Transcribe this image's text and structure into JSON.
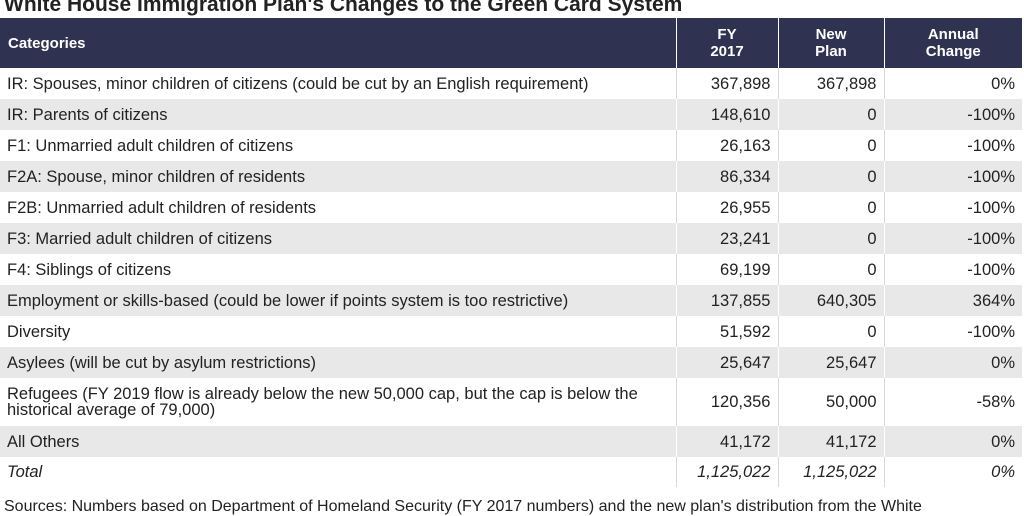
{
  "title": "White House Immigration Plan's Changes to the Green Card System",
  "table": {
    "header": [
      "Categories",
      "FY\n2017",
      "New\nPlan",
      "Annual\nChange"
    ],
    "rows": [
      [
        "IR: Spouses, minor children of citizens (could be cut by an English requirement)",
        "367,898",
        "367,898",
        "0%"
      ],
      [
        "IR: Parents of citizens",
        "148,610",
        "0",
        "-100%"
      ],
      [
        "F1: Unmarried adult children of citizens",
        "26,163",
        "0",
        "-100%"
      ],
      [
        "F2A: Spouse, minor children of residents",
        "86,334",
        "0",
        "-100%"
      ],
      [
        "F2B: Unmarried adult children of residents",
        "26,955",
        "0",
        "-100%"
      ],
      [
        "F3: Married adult children of citizens",
        "23,241",
        "0",
        "-100%"
      ],
      [
        "F4: Siblings of citizens",
        "69,199",
        "0",
        "-100%"
      ],
      [
        "Employment or skills-based (could be lower if points system is too restrictive)",
        "137,855",
        "640,305",
        "364%"
      ],
      [
        "Diversity",
        "51,592",
        "0",
        "-100%"
      ],
      [
        "Asylees (will be cut by asylum restrictions)",
        "25,647",
        "25,647",
        "0%"
      ],
      [
        "Refugees (FY 2019 flow is already below the new 50,000 cap, but the cap is below the historical average of 79,000)",
        "120,356",
        "50,000",
        "-58%"
      ],
      [
        "All Others",
        "41,172",
        "41,172",
        "0%"
      ],
      [
        "Total",
        "1,125,022",
        "1,125,022",
        "0%"
      ]
    ]
  },
  "footer": "Sources: Numbers based on Department of Homeland Security (FY 2017 numbers) and the new plan's distribution from the White"
}
